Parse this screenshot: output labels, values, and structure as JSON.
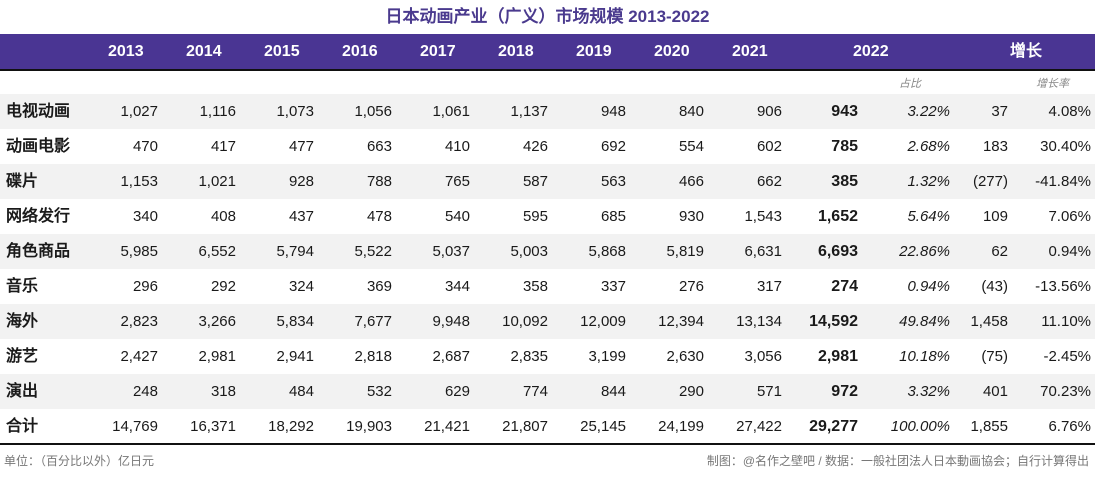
{
  "title": "日本动画产业（广义）市场规模 2013-2022",
  "columns": [
    "2013",
    "2014",
    "2015",
    "2016",
    "2017",
    "2018",
    "2019",
    "2020",
    "2021",
    "2022",
    "增长"
  ],
  "sub_headers": {
    "share": "占比",
    "growth_rate": "增长率"
  },
  "rows": [
    {
      "label": "电视动画",
      "values": [
        "1,027",
        "1,116",
        "1,073",
        "1,056",
        "1,061",
        "1,137",
        "948",
        "840",
        "906"
      ],
      "v2022": "943",
      "share": "3.22%",
      "growth": "37",
      "growth_rate": "4.08%"
    },
    {
      "label": "动画电影",
      "values": [
        "470",
        "417",
        "477",
        "663",
        "410",
        "426",
        "692",
        "554",
        "602"
      ],
      "v2022": "785",
      "share": "2.68%",
      "growth": "183",
      "growth_rate": "30.40%"
    },
    {
      "label": "碟片",
      "values": [
        "1,153",
        "1,021",
        "928",
        "788",
        "765",
        "587",
        "563",
        "466",
        "662"
      ],
      "v2022": "385",
      "share": "1.32%",
      "growth": "(277)",
      "growth_rate": "-41.84%"
    },
    {
      "label": "网络发行",
      "values": [
        "340",
        "408",
        "437",
        "478",
        "540",
        "595",
        "685",
        "930",
        "1,543"
      ],
      "v2022": "1,652",
      "share": "5.64%",
      "growth": "109",
      "growth_rate": "7.06%"
    },
    {
      "label": "角色商品",
      "values": [
        "5,985",
        "6,552",
        "5,794",
        "5,522",
        "5,037",
        "5,003",
        "5,868",
        "5,819",
        "6,631"
      ],
      "v2022": "6,693",
      "share": "22.86%",
      "growth": "62",
      "growth_rate": "0.94%"
    },
    {
      "label": "音乐",
      "values": [
        "296",
        "292",
        "324",
        "369",
        "344",
        "358",
        "337",
        "276",
        "317"
      ],
      "v2022": "274",
      "share": "0.94%",
      "growth": "(43)",
      "growth_rate": "-13.56%"
    },
    {
      "label": "海外",
      "values": [
        "2,823",
        "3,266",
        "5,834",
        "7,677",
        "9,948",
        "10,092",
        "12,009",
        "12,394",
        "13,134"
      ],
      "v2022": "14,592",
      "share": "49.84%",
      "growth": "1,458",
      "growth_rate": "11.10%"
    },
    {
      "label": "游艺",
      "values": [
        "2,427",
        "2,981",
        "2,941",
        "2,818",
        "2,687",
        "2,835",
        "3,199",
        "2,630",
        "3,056"
      ],
      "v2022": "2,981",
      "share": "10.18%",
      "growth": "(75)",
      "growth_rate": "-2.45%"
    },
    {
      "label": "演出",
      "values": [
        "248",
        "318",
        "484",
        "532",
        "629",
        "774",
        "844",
        "290",
        "571"
      ],
      "v2022": "972",
      "share": "3.32%",
      "growth": "401",
      "growth_rate": "70.23%"
    },
    {
      "label": "合计",
      "values": [
        "14,769",
        "16,371",
        "18,292",
        "19,903",
        "21,421",
        "21,807",
        "25,145",
        "24,199",
        "27,422"
      ],
      "v2022": "29,277",
      "share": "100.00%",
      "growth": "1,855",
      "growth_rate": "6.76%"
    }
  ],
  "footer": {
    "unit": "单位：（百分比以外）亿日元",
    "credit": "制图：@名作之壁吧 / 数据：一般社团法人日本動画協会；自行计算得出"
  },
  "colors": {
    "header_bg": "#4a3593",
    "title": "#4a3a8e"
  }
}
